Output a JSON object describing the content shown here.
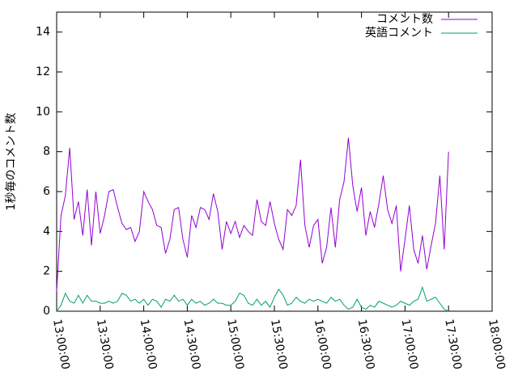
{
  "chart_data": {
    "type": "line",
    "y_label": "1秒毎のコメント数",
    "x": [
      "13:00:00",
      "13:03:00",
      "13:06:00",
      "13:09:00",
      "13:12:00",
      "13:15:00",
      "13:18:00",
      "13:21:00",
      "13:24:00",
      "13:27:00",
      "13:30:00",
      "13:33:00",
      "13:36:00",
      "13:39:00",
      "13:42:00",
      "13:45:00",
      "13:48:00",
      "13:51:00",
      "13:54:00",
      "13:57:00",
      "14:00:00",
      "14:03:00",
      "14:06:00",
      "14:09:00",
      "14:12:00",
      "14:15:00",
      "14:18:00",
      "14:21:00",
      "14:24:00",
      "14:27:00",
      "14:30:00",
      "14:33:00",
      "14:36:00",
      "14:39:00",
      "14:42:00",
      "14:45:00",
      "14:48:00",
      "14:51:00",
      "14:54:00",
      "14:57:00",
      "15:00:00",
      "15:03:00",
      "15:06:00",
      "15:09:00",
      "15:12:00",
      "15:15:00",
      "15:18:00",
      "15:21:00",
      "15:24:00",
      "15:27:00",
      "15:30:00",
      "15:33:00",
      "15:36:00",
      "15:39:00",
      "15:42:00",
      "15:45:00",
      "15:48:00",
      "15:51:00",
      "15:54:00",
      "15:57:00",
      "16:00:00",
      "16:03:00",
      "16:06:00",
      "16:09:00",
      "16:12:00",
      "16:15:00",
      "16:18:00",
      "16:21:00",
      "16:24:00",
      "16:27:00",
      "16:30:00",
      "16:33:00",
      "16:36:00",
      "16:39:00",
      "16:42:00",
      "16:45:00",
      "16:48:00",
      "16:51:00",
      "16:54:00",
      "16:57:00",
      "17:00:00",
      "17:03:00",
      "17:06:00",
      "17:09:00",
      "17:12:00",
      "17:15:00",
      "17:18:00",
      "17:21:00",
      "17:24:00",
      "17:27:00",
      "17:30:00"
    ],
    "series": [
      {
        "name": "コメント数",
        "color": "#9400d3",
        "values": [
          1.0,
          4.8,
          5.8,
          8.2,
          4.6,
          5.5,
          3.8,
          6.1,
          3.3,
          6.0,
          3.9,
          4.8,
          6.0,
          6.1,
          5.2,
          4.4,
          4.1,
          4.2,
          3.5,
          4.0,
          6.0,
          5.5,
          5.1,
          4.3,
          4.2,
          2.9,
          3.6,
          5.1,
          5.2,
          3.6,
          2.7,
          4.8,
          4.2,
          5.2,
          5.1,
          4.6,
          5.9,
          5.0,
          3.1,
          4.5,
          3.9,
          4.5,
          3.7,
          4.3,
          4.0,
          3.8,
          5.6,
          4.5,
          4.3,
          5.5,
          4.4,
          3.6,
          3.1,
          5.1,
          4.8,
          5.3,
          7.6,
          4.3,
          3.2,
          4.3,
          4.6,
          2.4,
          3.2,
          5.2,
          3.2,
          5.6,
          6.5,
          8.7,
          6.3,
          5.0,
          6.2,
          3.8,
          5.0,
          4.2,
          5.4,
          6.8,
          5.1,
          4.4,
          5.3,
          2.0,
          3.6,
          5.3,
          3.1,
          2.4,
          3.8,
          2.1,
          3.3,
          4.4,
          6.8,
          3.1,
          8.0
        ]
      },
      {
        "name": "英語コメント",
        "color": "#009e73",
        "values": [
          0.0,
          0.3,
          0.9,
          0.5,
          0.4,
          0.8,
          0.4,
          0.8,
          0.5,
          0.5,
          0.4,
          0.4,
          0.5,
          0.4,
          0.5,
          0.9,
          0.8,
          0.5,
          0.6,
          0.4,
          0.6,
          0.3,
          0.6,
          0.5,
          0.2,
          0.6,
          0.5,
          0.8,
          0.5,
          0.6,
          0.3,
          0.6,
          0.4,
          0.5,
          0.3,
          0.4,
          0.6,
          0.4,
          0.4,
          0.3,
          0.3,
          0.5,
          0.9,
          0.8,
          0.4,
          0.3,
          0.6,
          0.3,
          0.5,
          0.2,
          0.7,
          1.1,
          0.8,
          0.3,
          0.4,
          0.7,
          0.5,
          0.4,
          0.6,
          0.5,
          0.6,
          0.5,
          0.4,
          0.7,
          0.5,
          0.6,
          0.3,
          0.1,
          0.2,
          0.6,
          0.2,
          0.1,
          0.3,
          0.2,
          0.5,
          0.4,
          0.3,
          0.2,
          0.3,
          0.5,
          0.4,
          0.3,
          0.5,
          0.6,
          1.2,
          0.5,
          0.6,
          0.7,
          0.4,
          0.1,
          0.0
        ]
      }
    ],
    "xlim": [
      "13:00:00",
      "18:00:00"
    ],
    "xticks": [
      "13:00:00",
      "13:30:00",
      "14:00:00",
      "14:30:00",
      "15:00:00",
      "15:30:00",
      "16:00:00",
      "16:30:00",
      "17:00:00",
      "17:30:00",
      "18:00:00"
    ],
    "ylim": [
      0,
      15
    ],
    "yticks": [
      0,
      2,
      4,
      6,
      8,
      10,
      12,
      14
    ],
    "grid": false,
    "legend": "top-right"
  }
}
